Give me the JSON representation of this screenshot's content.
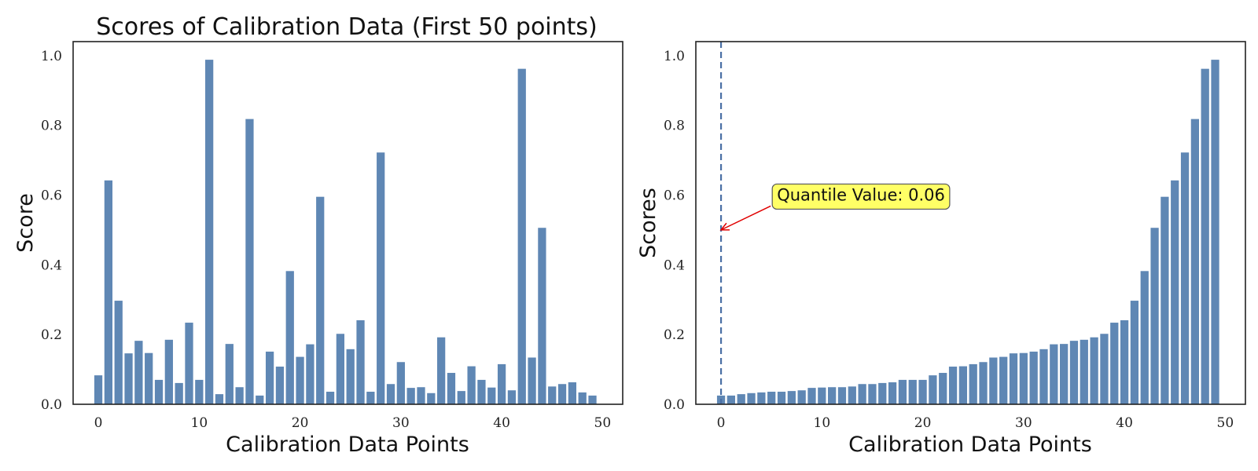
{
  "colors": {
    "bar": "#5f87b4",
    "dashed_line": "#4a6fa5",
    "annotation_bg": "#ffff66",
    "annotation_arrow": "#e00000"
  },
  "chart_data": [
    {
      "type": "bar",
      "title": "Scores of Calibration Data (First 50 points)",
      "xlabel": "Calibration Data Points",
      "ylabel": "Score",
      "xlim": [
        -2.5,
        52
      ],
      "ylim": [
        0,
        1.04
      ],
      "xticks": [
        "0",
        "10",
        "20",
        "30",
        "40",
        "50"
      ],
      "yticks": [
        "0.0",
        "0.2",
        "0.4",
        "0.6",
        "0.8",
        "1.0"
      ],
      "grid": false,
      "x": [
        0,
        1,
        2,
        3,
        4,
        5,
        6,
        7,
        8,
        9,
        10,
        11,
        12,
        13,
        14,
        15,
        16,
        17,
        18,
        19,
        20,
        21,
        22,
        23,
        24,
        25,
        26,
        27,
        28,
        29,
        30,
        31,
        32,
        33,
        34,
        35,
        36,
        37,
        38,
        39,
        40,
        41,
        42,
        43,
        44,
        45,
        46,
        47,
        48,
        49
      ],
      "values": [
        0.083,
        0.642,
        0.297,
        0.146,
        0.182,
        0.147,
        0.07,
        0.185,
        0.061,
        0.234,
        0.07,
        0.988,
        0.029,
        0.173,
        0.049,
        0.818,
        0.025,
        0.151,
        0.108,
        0.382,
        0.136,
        0.172,
        0.595,
        0.036,
        0.202,
        0.158,
        0.241,
        0.036,
        0.722,
        0.058,
        0.121,
        0.047,
        0.049,
        0.032,
        0.192,
        0.09,
        0.038,
        0.109,
        0.07,
        0.048,
        0.115,
        0.04,
        0.962,
        0.134,
        0.506,
        0.051,
        0.058,
        0.063,
        0.034,
        0.025
      ]
    },
    {
      "type": "bar",
      "title": "",
      "xlabel": "Calibration Data Points",
      "ylabel": "Scores",
      "xlim": [
        -2.5,
        52
      ],
      "ylim": [
        0,
        1.04
      ],
      "xticks": [
        "0",
        "10",
        "20",
        "30",
        "40",
        "50"
      ],
      "yticks": [
        "0.0",
        "0.2",
        "0.4",
        "0.6",
        "0.8",
        "1.0"
      ],
      "grid": false,
      "x": [
        0,
        1,
        2,
        3,
        4,
        5,
        6,
        7,
        8,
        9,
        10,
        11,
        12,
        13,
        14,
        15,
        16,
        17,
        18,
        19,
        20,
        21,
        22,
        23,
        24,
        25,
        26,
        27,
        28,
        29,
        30,
        31,
        32,
        33,
        34,
        35,
        36,
        37,
        38,
        39,
        40,
        41,
        42,
        43,
        44,
        45,
        46,
        47,
        48,
        49
      ],
      "values": [
        0.025,
        0.025,
        0.029,
        0.032,
        0.034,
        0.036,
        0.036,
        0.038,
        0.04,
        0.047,
        0.048,
        0.049,
        0.049,
        0.051,
        0.058,
        0.058,
        0.061,
        0.063,
        0.07,
        0.07,
        0.07,
        0.083,
        0.09,
        0.108,
        0.109,
        0.115,
        0.121,
        0.134,
        0.136,
        0.146,
        0.147,
        0.151,
        0.158,
        0.172,
        0.173,
        0.182,
        0.185,
        0.192,
        0.202,
        0.234,
        0.241,
        0.297,
        0.382,
        0.506,
        0.595,
        0.642,
        0.722,
        0.818,
        0.962,
        0.988
      ],
      "vline": {
        "x": 0,
        "style": "dashed"
      },
      "annotation": {
        "text": "Quantile Value: 0.06",
        "target": {
          "x": 0,
          "y": 0.5
        },
        "text_at": {
          "x": 5,
          "y": 0.6
        }
      }
    }
  ]
}
